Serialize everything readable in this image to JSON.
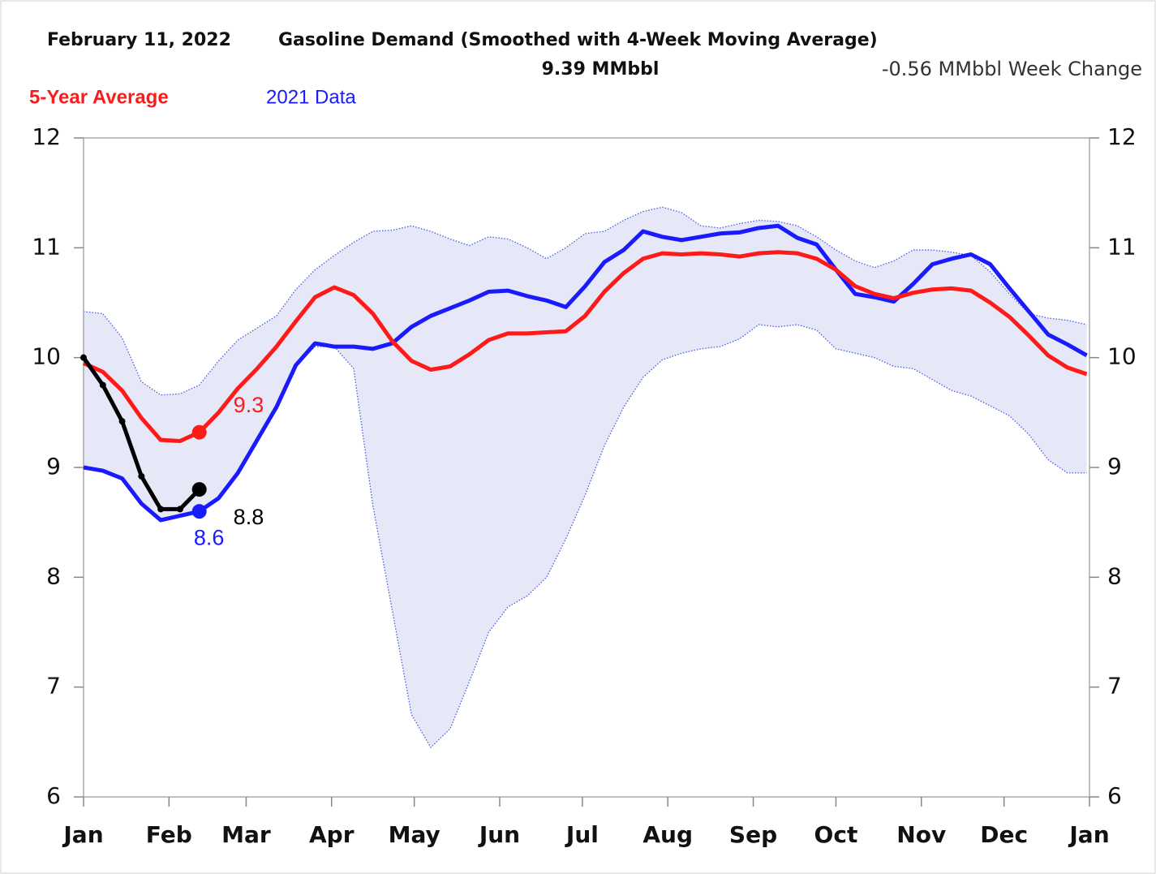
{
  "chart_data": {
    "type": "line",
    "date": "February 11, 2022",
    "title": "Gasoline Demand  (Smoothed with 4-Week Moving Average)",
    "subtitle": "9.39 MMbbl",
    "annotation": "-0.56 MMbbl Week Change",
    "x": [
      0,
      7,
      14,
      21,
      28,
      35,
      42,
      49,
      56,
      63,
      70,
      77,
      84,
      91,
      98,
      105,
      112,
      119,
      126,
      133,
      140,
      147,
      154,
      161,
      168,
      175,
      182,
      189,
      196,
      203,
      210,
      217,
      224,
      231,
      238,
      245,
      252,
      259,
      266,
      273,
      280,
      287,
      294,
      301,
      308,
      315,
      322,
      329,
      336,
      343,
      350,
      357,
      364
    ],
    "xlim": [
      0,
      365
    ],
    "xticks": [
      {
        "value": 0,
        "label": "Jan"
      },
      {
        "value": 31,
        "label": "Feb"
      },
      {
        "value": 59,
        "label": "Mar"
      },
      {
        "value": 90,
        "label": "Apr"
      },
      {
        "value": 120,
        "label": "May"
      },
      {
        "value": 151,
        "label": "Jun"
      },
      {
        "value": 181,
        "label": "Jul"
      },
      {
        "value": 212,
        "label": "Aug"
      },
      {
        "value": 243,
        "label": "Sep"
      },
      {
        "value": 273,
        "label": "Oct"
      },
      {
        "value": 304,
        "label": "Nov"
      },
      {
        "value": 334,
        "label": "Dec"
      },
      {
        "value": 365,
        "label": "Jan"
      }
    ],
    "ylim": [
      6,
      12
    ],
    "yticks": [
      6,
      7,
      8,
      9,
      10,
      11,
      12
    ],
    "y2lim": [
      6,
      12
    ],
    "y2ticks": [
      6,
      7,
      8,
      9,
      10,
      11,
      12
    ],
    "band": {
      "color": "#e6e8f7",
      "line_color": "#4a5ae8",
      "upper": [
        10.42,
        10.4,
        10.18,
        9.78,
        9.66,
        9.67,
        9.75,
        9.97,
        10.16,
        10.27,
        10.38,
        10.62,
        10.8,
        10.93,
        11.05,
        11.15,
        11.16,
        11.2,
        11.15,
        11.08,
        11.02,
        11.1,
        11.08,
        11.0,
        10.9,
        11.0,
        11.13,
        11.15,
        11.25,
        11.33,
        11.37,
        11.32,
        11.2,
        11.18,
        11.22,
        11.25,
        11.24,
        11.2,
        11.1,
        10.98,
        10.88,
        10.82,
        10.88,
        10.98,
        10.98,
        10.96,
        10.93,
        10.78,
        10.58,
        10.4,
        10.36,
        10.34,
        10.3
      ],
      "lower": [
        9.0,
        8.97,
        8.9,
        8.67,
        8.52,
        8.56,
        8.6,
        8.72,
        8.95,
        9.25,
        9.55,
        9.93,
        10.1,
        10.1,
        9.9,
        8.65,
        7.7,
        6.75,
        6.45,
        6.62,
        7.05,
        7.5,
        7.73,
        7.83,
        8.0,
        8.35,
        8.75,
        9.2,
        9.55,
        9.82,
        9.98,
        10.04,
        10.08,
        10.1,
        10.17,
        10.3,
        10.28,
        10.3,
        10.25,
        10.08,
        10.04,
        10.0,
        9.92,
        9.9,
        9.8,
        9.7,
        9.65,
        9.56,
        9.47,
        9.3,
        9.07,
        8.95,
        8.95
      ]
    },
    "series": [
      {
        "name": "5-Year Average",
        "color": "#ff1a1a",
        "values": [
          9.95,
          9.87,
          9.7,
          9.45,
          9.25,
          9.24,
          9.32,
          9.5,
          9.72,
          9.9,
          10.1,
          10.33,
          10.55,
          10.64,
          10.57,
          10.4,
          10.15,
          9.97,
          9.89,
          9.92,
          10.03,
          10.16,
          10.22,
          10.22,
          10.23,
          10.24,
          10.38,
          10.6,
          10.77,
          10.9,
          10.95,
          10.94,
          10.95,
          10.94,
          10.92,
          10.95,
          10.96,
          10.95,
          10.9,
          10.8,
          10.65,
          10.58,
          10.54,
          10.59,
          10.62,
          10.63,
          10.61,
          10.5,
          10.37,
          10.2,
          10.02,
          9.91,
          9.85
        ],
        "value_labels": [
          null,
          null,
          null,
          null,
          null,
          null,
          "9.3",
          null,
          null,
          null,
          null,
          null,
          null,
          null,
          null,
          null,
          null,
          null,
          null,
          null,
          null,
          null,
          null,
          null,
          null,
          null,
          null,
          null,
          null,
          null,
          null,
          null,
          null,
          null,
          null,
          null,
          null,
          null,
          null,
          null,
          null,
          null,
          null,
          null,
          null,
          null,
          null,
          null,
          null,
          null,
          null,
          null,
          null
        ]
      },
      {
        "name": "2021 Data",
        "color": "#1a1aff",
        "values": [
          9.0,
          8.97,
          8.9,
          8.67,
          8.52,
          8.56,
          8.6,
          8.72,
          8.95,
          9.25,
          9.55,
          9.93,
          10.13,
          10.1,
          10.1,
          10.08,
          10.13,
          10.28,
          10.38,
          10.45,
          10.52,
          10.6,
          10.61,
          10.56,
          10.52,
          10.46,
          10.65,
          10.87,
          10.98,
          11.15,
          11.1,
          11.07,
          11.1,
          11.13,
          11.14,
          11.18,
          11.2,
          11.09,
          11.03,
          10.8,
          10.58,
          10.55,
          10.51,
          10.67,
          10.85,
          10.9,
          10.94,
          10.85,
          10.63,
          10.42,
          10.21,
          10.12,
          10.02
        ],
        "value_labels": [
          null,
          null,
          null,
          null,
          null,
          null,
          "8.6",
          null,
          null,
          null,
          null,
          null,
          null,
          null,
          null,
          null,
          null,
          null,
          null,
          null,
          null,
          null,
          null,
          null,
          null,
          null,
          null,
          null,
          null,
          null,
          null,
          null,
          null,
          null,
          null,
          null,
          null,
          null,
          null,
          null,
          null,
          null,
          null,
          null,
          null,
          null,
          null,
          null,
          null,
          null,
          null,
          null,
          null
        ]
      },
      {
        "color": "#000000",
        "values": [
          10.0,
          9.75,
          9.42,
          8.92,
          8.62,
          8.62,
          8.8,
          null,
          null,
          null,
          null,
          null,
          null,
          null,
          null,
          null,
          null,
          null,
          null,
          null,
          null,
          null,
          null,
          null,
          null,
          null,
          null,
          null,
          null,
          null,
          null,
          null,
          null,
          null,
          null,
          null,
          null,
          null,
          null,
          null,
          null,
          null,
          null,
          null,
          null,
          null,
          null,
          null,
          null,
          null,
          null,
          null,
          null
        ],
        "value_labels": [
          null,
          null,
          null,
          null,
          null,
          null,
          "8.8",
          null,
          null,
          null,
          null,
          null,
          null,
          null,
          null,
          null,
          null,
          null,
          null,
          null,
          null,
          null,
          null,
          null,
          null,
          null,
          null,
          null,
          null,
          null,
          null,
          null,
          null,
          null,
          null,
          null,
          null,
          null,
          null,
          null,
          null,
          null,
          null,
          null,
          null,
          null,
          null,
          null,
          null,
          null,
          null,
          null,
          null
        ]
      }
    ]
  }
}
